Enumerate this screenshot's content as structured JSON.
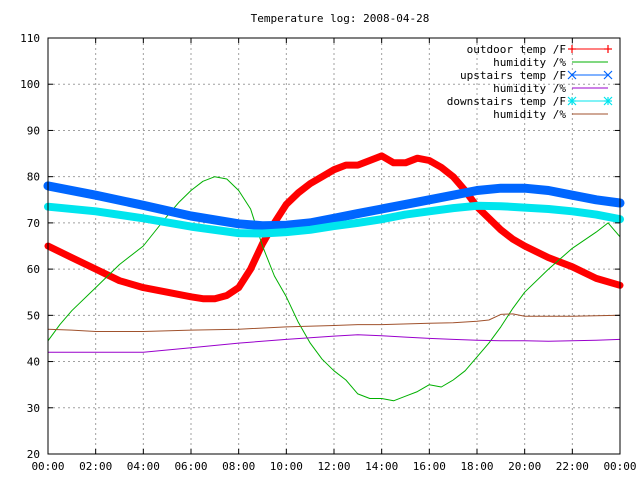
{
  "chart_data": {
    "type": "line",
    "title": "Temperature log: 2008-04-28",
    "xlabel": "",
    "ylabel": "",
    "xlim": [
      0,
      24
    ],
    "ylim": [
      20,
      110
    ],
    "grid": true,
    "legend_position": "top-right",
    "x_ticks": [
      {
        "value": 0,
        "label": "00:00"
      },
      {
        "value": 2,
        "label": "02:00"
      },
      {
        "value": 4,
        "label": "04:00"
      },
      {
        "value": 6,
        "label": "06:00"
      },
      {
        "value": 8,
        "label": "08:00"
      },
      {
        "value": 10,
        "label": "10:00"
      },
      {
        "value": 12,
        "label": "12:00"
      },
      {
        "value": 14,
        "label": "14:00"
      },
      {
        "value": 16,
        "label": "16:00"
      },
      {
        "value": 18,
        "label": "18:00"
      },
      {
        "value": 20,
        "label": "20:00"
      },
      {
        "value": 22,
        "label": "22:00"
      },
      {
        "value": 24,
        "label": "00:00"
      }
    ],
    "y_ticks": [
      {
        "value": 20,
        "label": "20"
      },
      {
        "value": 30,
        "label": "30"
      },
      {
        "value": 40,
        "label": "40"
      },
      {
        "value": 50,
        "label": "50"
      },
      {
        "value": 60,
        "label": "60"
      },
      {
        "value": 70,
        "label": "70"
      },
      {
        "value": 80,
        "label": "80"
      },
      {
        "value": 90,
        "label": "90"
      },
      {
        "value": 100,
        "label": "100"
      },
      {
        "value": 110,
        "label": "110"
      }
    ],
    "series": [
      {
        "name": "outdoor temp /F",
        "color": "#ff0000",
        "marker": "plus",
        "x": [
          0,
          1,
          2,
          3,
          4,
          5,
          6,
          6.5,
          7,
          7.5,
          8,
          8.5,
          9,
          9.5,
          10,
          10.5,
          11,
          11.5,
          12,
          12.5,
          13,
          13.5,
          14,
          14.5,
          15,
          15.5,
          16,
          16.5,
          17,
          17.5,
          18,
          18.5,
          19,
          19.5,
          20,
          21,
          22,
          23,
          24
        ],
        "y": [
          65,
          62.5,
          60,
          57.5,
          56,
          55,
          54,
          53.6,
          53.6,
          54.3,
          56,
          60,
          65.5,
          70,
          74,
          76.5,
          78.5,
          80,
          81.5,
          82.5,
          82.5,
          83.5,
          84.5,
          83,
          83,
          84,
          83.5,
          82,
          80,
          77,
          73.5,
          71,
          68.5,
          66.5,
          65,
          62.5,
          60.5,
          58,
          56.5
        ]
      },
      {
        "name": "humidity /%",
        "color": "#00b000",
        "marker": "none",
        "x": [
          0,
          0.5,
          1,
          2,
          3,
          4,
          5,
          5.5,
          6,
          6.5,
          7,
          7.5,
          8,
          8.5,
          9,
          9.5,
          10,
          10.5,
          11,
          11.5,
          12,
          12.5,
          13,
          13.5,
          14,
          14.5,
          15,
          15.5,
          16,
          16.5,
          17,
          17.5,
          18,
          18.5,
          19,
          19.5,
          20,
          21,
          22,
          23,
          23.5,
          24
        ],
        "y": [
          44.5,
          48,
          51,
          56,
          61,
          65,
          71.5,
          74.5,
          77,
          79,
          80,
          79.5,
          77,
          73,
          65,
          58.5,
          54,
          48.5,
          44,
          40.5,
          38,
          36,
          33,
          32,
          32,
          31.5,
          32.5,
          33.5,
          35,
          34.5,
          36,
          38,
          41,
          44,
          47.5,
          51.5,
          55,
          60,
          64.5,
          68,
          70,
          67
        ]
      },
      {
        "name": "upstairs temp /F",
        "color": "#0066ff",
        "marker": "cross",
        "x": [
          0,
          2,
          4,
          6,
          8,
          9,
          10,
          11,
          12,
          13,
          14,
          15,
          16,
          17,
          18,
          19,
          20,
          21,
          22,
          23,
          24
        ],
        "y": [
          78,
          76,
          73.8,
          71.5,
          69.8,
          69.4,
          69.5,
          70,
          71,
          72,
          73,
          74,
          75,
          76,
          77,
          77.5,
          77.5,
          77,
          76,
          75,
          74.3
        ]
      },
      {
        "name": "humidity /%",
        "color": "#9900cc",
        "marker": "none",
        "x": [
          0,
          2,
          4,
          6,
          8,
          10,
          12,
          13,
          14,
          15,
          16,
          17,
          18,
          19,
          20,
          21,
          22,
          23,
          24
        ],
        "y": [
          42,
          42,
          42,
          43,
          44,
          44.8,
          45.5,
          45.8,
          45.6,
          45.3,
          45,
          44.8,
          44.6,
          44.5,
          44.5,
          44.4,
          44.5,
          44.6,
          44.8
        ]
      },
      {
        "name": "downstairs temp /F",
        "color": "#00e5ee",
        "marker": "star",
        "x": [
          0,
          2,
          4,
          6,
          8,
          9,
          10,
          11,
          12,
          13,
          14,
          15,
          16,
          17,
          18,
          19,
          20,
          21,
          22,
          23,
          24
        ],
        "y": [
          73.5,
          72.5,
          71,
          69.2,
          67.8,
          67.7,
          68,
          68.5,
          69.3,
          70,
          70.8,
          71.8,
          72.5,
          73.2,
          73.7,
          73.6,
          73.3,
          73,
          72.5,
          71.8,
          70.8
        ]
      },
      {
        "name": "humidity /%",
        "color": "#a0522d",
        "marker": "none",
        "x": [
          0,
          1,
          2,
          4,
          6,
          8,
          10,
          12,
          13,
          14,
          16,
          17,
          18,
          18.5,
          19,
          19.5,
          20,
          22,
          24
        ],
        "y": [
          47,
          46.8,
          46.5,
          46.5,
          46.8,
          47,
          47.5,
          47.8,
          48,
          48,
          48.3,
          48.4,
          48.7,
          49,
          50.2,
          50.3,
          49.8,
          49.8,
          50
        ]
      }
    ]
  }
}
